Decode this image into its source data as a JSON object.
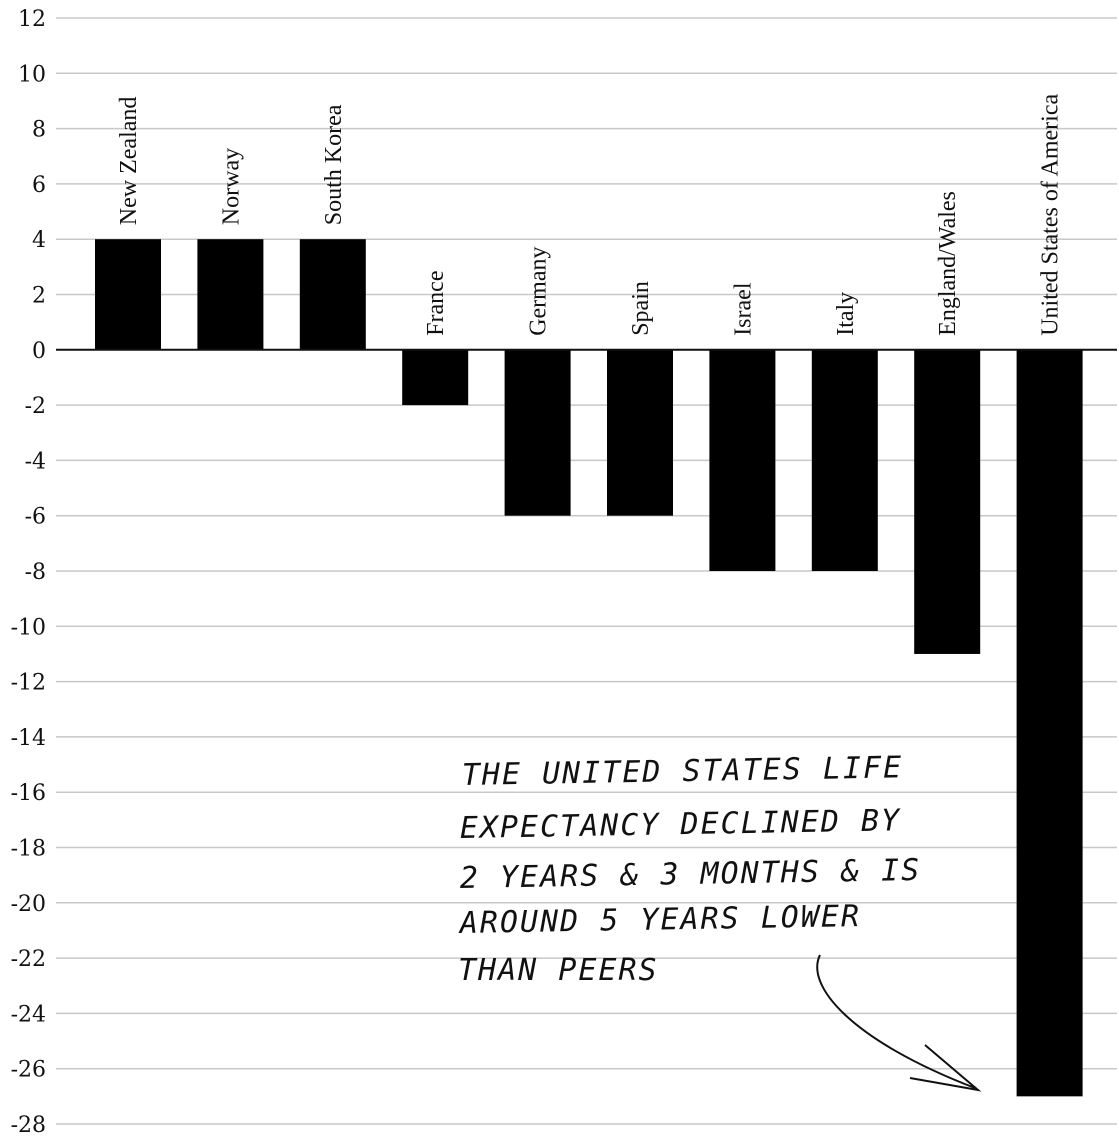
{
  "chart_data": {
    "type": "bar",
    "categories": [
      "New Zealand",
      "Norway",
      "South Korea",
      "France",
      "Germany",
      "Spain",
      "Israel",
      "Italy",
      "England/Wales",
      "United States of America"
    ],
    "values": [
      4,
      4,
      4,
      -2,
      -6,
      -6,
      -8,
      -8,
      -11,
      -27
    ],
    "ylim": [
      -28,
      12
    ],
    "yticks": [
      12,
      10,
      8,
      6,
      4,
      2,
      0,
      -2,
      -4,
      -6,
      -8,
      -10,
      -12,
      -14,
      -16,
      -18,
      -20,
      -22,
      -24,
      -26,
      -28
    ],
    "grid": true,
    "bar_color": "#000000",
    "annotation": {
      "lines": [
        "THE UNITED STATES LIFE",
        "EXPECTANCY DECLINED BY",
        "2 YEARS & 3 MONTHS & IS",
        "AROUND 5 YEARS LOWER",
        "THAN PEERS"
      ],
      "points_to": "United States of America"
    }
  }
}
